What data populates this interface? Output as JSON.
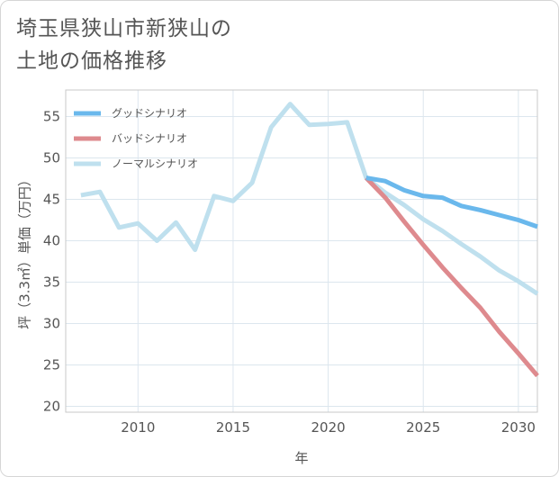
{
  "title_lines": [
    "埼玉県狭山市新狭山の",
    "土地の価格推移"
  ],
  "chart_data": {
    "type": "line",
    "xlabel": "年",
    "ylabel": "坪（3.3㎡）単価（万円）",
    "xlim": [
      2006.2,
      2031
    ],
    "ylim": [
      19.3,
      58.2
    ],
    "xticks": [
      2010,
      2015,
      2020,
      2025,
      2030
    ],
    "yticks": [
      20,
      25,
      30,
      35,
      40,
      45,
      50,
      55
    ],
    "grid": true,
    "legend_position": "top-left",
    "series": [
      {
        "name": "グッドシナリオ",
        "color": "#6ab8ec",
        "x": [
          2022,
          2023,
          2024,
          2025,
          2026,
          2027,
          2028,
          2029,
          2030,
          2031
        ],
        "values": [
          47.6,
          47.2,
          46.1,
          45.4,
          45.2,
          44.2,
          43.7,
          43.1,
          42.5,
          41.7
        ]
      },
      {
        "name": "バッドシナリオ",
        "color": "#de8a8e",
        "x": [
          2022,
          2023,
          2024,
          2025,
          2026,
          2027,
          2028,
          2029,
          2030,
          2031
        ],
        "values": [
          47.6,
          45.2,
          42.3,
          39.5,
          36.8,
          34.3,
          31.9,
          29.0,
          26.4,
          23.7
        ]
      },
      {
        "name": "ノーマルシナリオ",
        "color": "#bfe0ee",
        "x": [
          2007,
          2008,
          2009,
          2010,
          2011,
          2012,
          2013,
          2014,
          2015,
          2016,
          2017,
          2018,
          2019,
          2020,
          2021,
          2022,
          2023,
          2024,
          2025,
          2026,
          2027,
          2028,
          2029,
          2030,
          2031
        ],
        "values": [
          45.5,
          45.9,
          41.6,
          42.1,
          40.0,
          42.2,
          38.9,
          45.4,
          44.8,
          47.0,
          53.7,
          56.5,
          54.0,
          54.1,
          54.3,
          47.6,
          45.8,
          44.3,
          42.6,
          41.2,
          39.6,
          38.1,
          36.4,
          35.1,
          33.6
        ]
      }
    ]
  }
}
